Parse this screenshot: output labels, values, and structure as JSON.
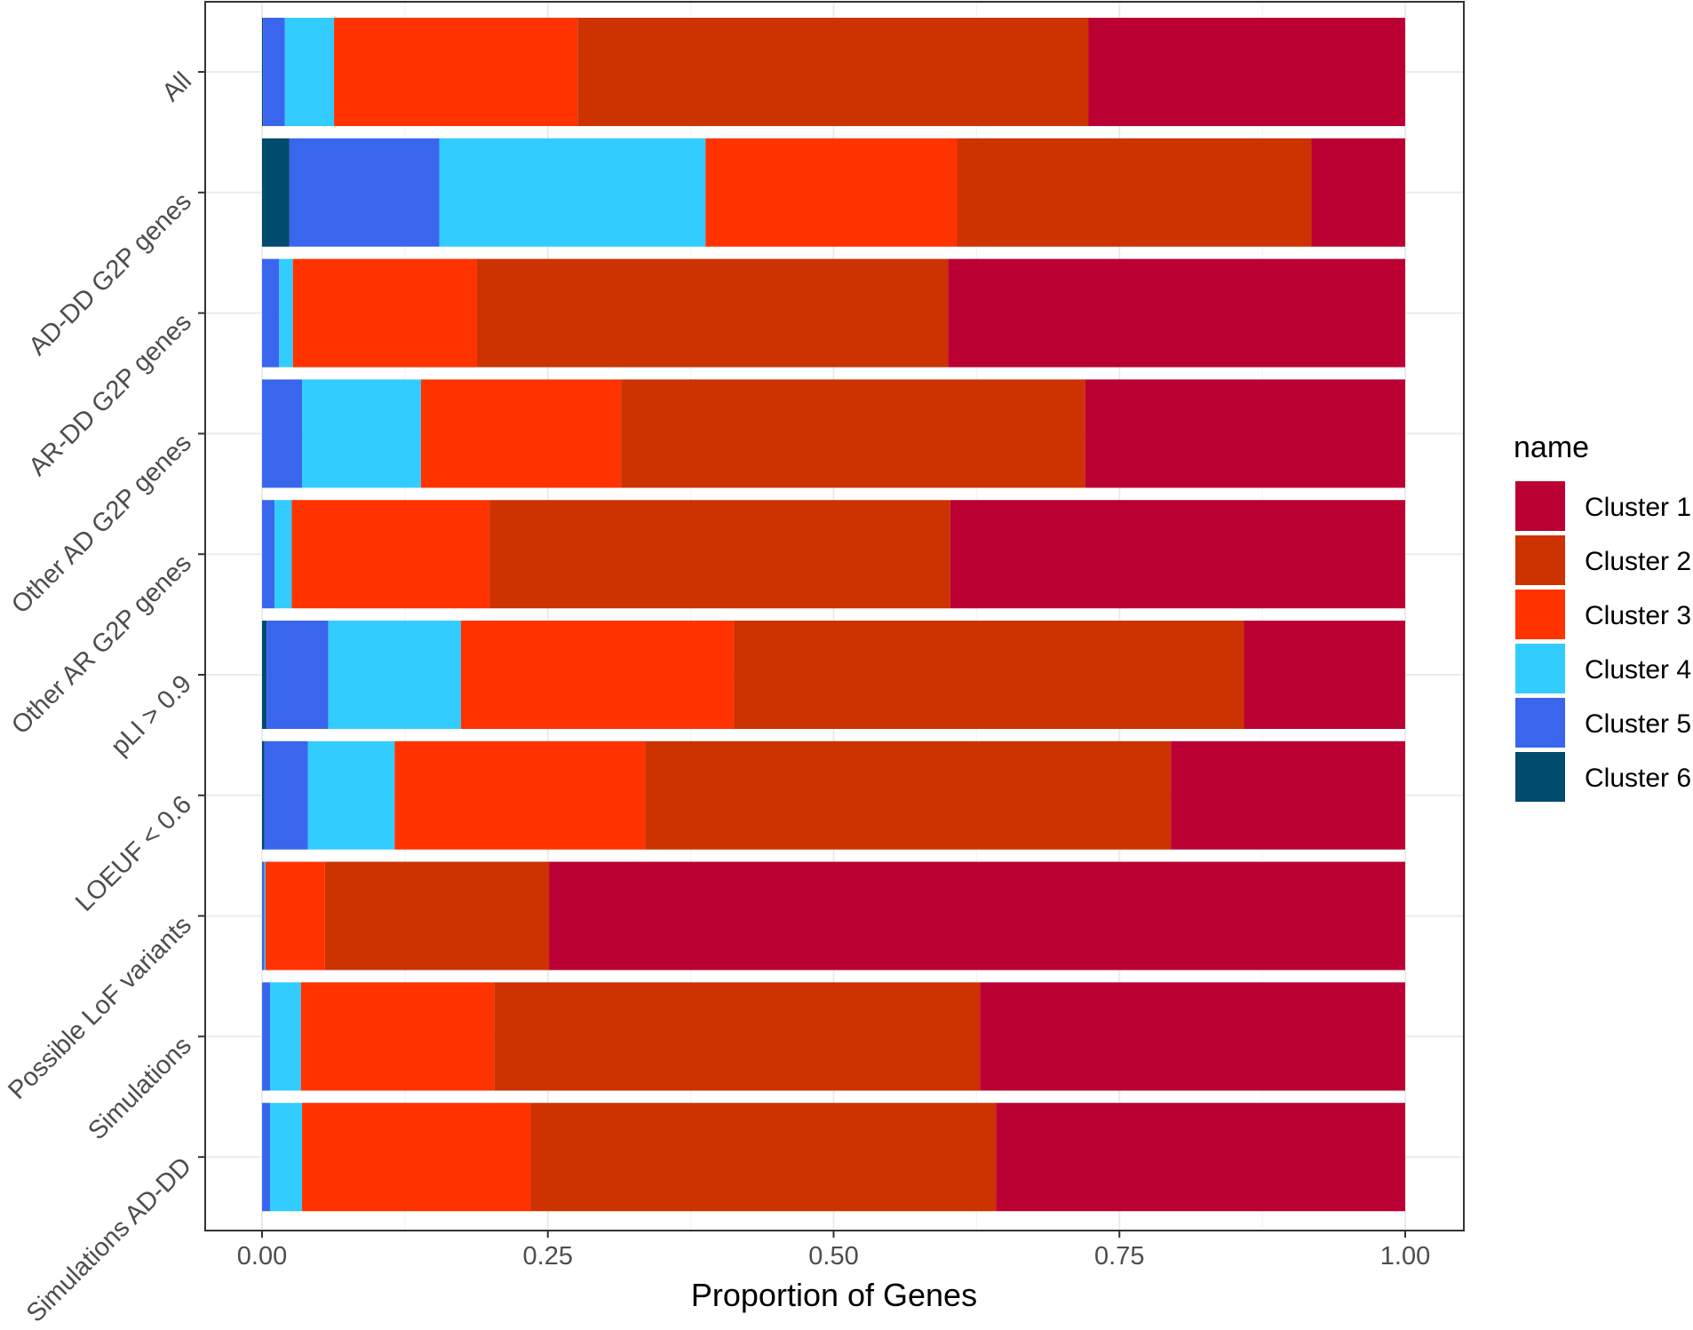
{
  "chart_data": {
    "type": "bar",
    "orientation": "horizontal",
    "stacked": true,
    "xlabel": "Proportion of Genes",
    "ylabel": "",
    "xlim": [
      0,
      1
    ],
    "xticks": [
      "0.00",
      "0.25",
      "0.50",
      "0.75",
      "1.00"
    ],
    "xtick_values": [
      0,
      0.25,
      0.5,
      0.75,
      1.0
    ],
    "grid": true,
    "legend": {
      "title": "name",
      "position": "right"
    },
    "categories": [
      "All",
      "AD-DD G2P genes",
      "AR-DD G2P genes",
      "Other AD G2P genes",
      "Other AR G2P genes",
      "pLI > 0.9",
      "LOEUF < 0.6",
      "Possible LoF variants",
      "Simulations",
      "Simulations AD-DD"
    ],
    "series": [
      {
        "name": "Cluster 6",
        "color": "#004b6e",
        "values": [
          0.001,
          0.024,
          0.0,
          0.0,
          0.0,
          0.004,
          0.002,
          0.0,
          0.0,
          0.0
        ]
      },
      {
        "name": "Cluster 5",
        "color": "#3a66ee",
        "values": [
          0.019,
          0.131,
          0.015,
          0.035,
          0.011,
          0.054,
          0.038,
          0.002,
          0.007,
          0.007
        ]
      },
      {
        "name": "Cluster 4",
        "color": "#33ccff",
        "values": [
          0.043,
          0.233,
          0.012,
          0.104,
          0.015,
          0.116,
          0.076,
          0.001,
          0.027,
          0.028
        ]
      },
      {
        "name": "Cluster 3",
        "color": "#ff3300",
        "values": [
          0.213,
          0.22,
          0.161,
          0.175,
          0.173,
          0.239,
          0.219,
          0.052,
          0.169,
          0.2
        ]
      },
      {
        "name": "Cluster 2",
        "color": "#cc3300",
        "values": [
          0.447,
          0.31,
          0.412,
          0.406,
          0.403,
          0.446,
          0.46,
          0.196,
          0.425,
          0.407
        ]
      },
      {
        "name": "Cluster 1",
        "color": "#bb0033",
        "values": [
          0.277,
          0.082,
          0.4,
          0.28,
          0.398,
          0.141,
          0.205,
          0.749,
          0.372,
          0.358
        ]
      }
    ],
    "legend_order": [
      "Cluster 1",
      "Cluster 2",
      "Cluster 3",
      "Cluster 4",
      "Cluster 5",
      "Cluster 6"
    ]
  }
}
